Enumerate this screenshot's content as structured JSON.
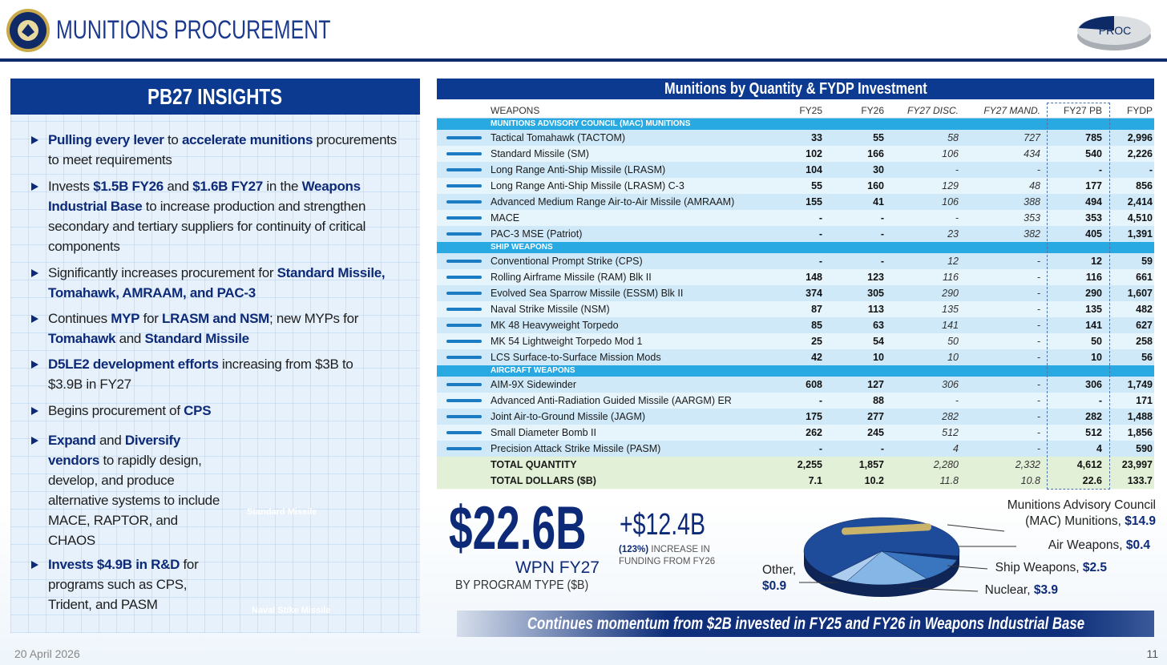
{
  "header": {
    "title": "MUNITIONS PROCUREMENT",
    "badge": "PROC"
  },
  "insights": {
    "title": "PB27 INSIGHTS",
    "bullets": [
      [
        {
          "text": "Pulling every lever",
          "bold": true
        },
        {
          "text": " to "
        },
        {
          "text": "accelerate munitions",
          "bold": true
        },
        {
          "text": " procurements to meet requirements"
        }
      ],
      [
        {
          "text": "Invests "
        },
        {
          "text": "$1.5B FY26",
          "bold": true
        },
        {
          "text": " and "
        },
        {
          "text": "$1.6B FY27",
          "bold": true
        },
        {
          "text": " in the "
        },
        {
          "text": "Weapons Industrial Base",
          "bold": true
        },
        {
          "text": " to increase production and strengthen secondary and tertiary suppliers for continuity of critical components"
        }
      ],
      [
        {
          "text": "Significantly increases procurement for "
        },
        {
          "text": "Standard Missile, Tomahawk, AMRAAM, and PAC-3",
          "bold": true
        }
      ],
      [
        {
          "text": "Continues "
        },
        {
          "text": "MYP",
          "bold": true
        },
        {
          "text": " for "
        },
        {
          "text": "LRASM and NSM",
          "bold": true
        },
        {
          "text": "; new MYPs for "
        },
        {
          "text": "Tomahawk",
          "bold": true
        },
        {
          "text": " and "
        },
        {
          "text": "Standard Missile",
          "bold": true
        }
      ],
      [
        {
          "text": "D5LE2 development efforts",
          "bold": true
        },
        {
          "text": " increasing from $3B to $3.9B in FY27"
        }
      ],
      [
        {
          "text": "Begins procurement of "
        },
        {
          "text": "CPS",
          "bold": true
        }
      ],
      [
        {
          "text": "Expand",
          "bold": true
        },
        {
          "text": " and "
        },
        {
          "text": "Diversify vendors",
          "bold": true
        },
        {
          "text": " to rapidly design, develop, and produce alternative systems to include MACE, RAPTOR, and CHAOS"
        }
      ],
      [
        {
          "text": "Invests $4.9B in R&D",
          "bold": true
        },
        {
          "text": " for programs such as CPS, Trident, and PASM"
        }
      ]
    ]
  },
  "images": [
    {
      "caption": "Standard Missile"
    },
    {
      "caption": "Naval Stike Missile"
    }
  ],
  "table": {
    "title": "Munitions by Quantity & FYDP Investment",
    "columns": [
      "WEAPONS",
      "FY25",
      "FY26",
      "FY27 DISC.",
      "FY27 MAND.",
      "FY27 PB",
      "FYDP"
    ],
    "sections": [
      {
        "title": "MUNITIONS ADVISORY COUNCIL (MAC) MUNITIONS",
        "rows": [
          {
            "name": "Tactical Tomahawk (TACTOM)",
            "cells": [
              "33",
              "55",
              "58",
              "727",
              "785",
              "2,996"
            ]
          },
          {
            "name": "Standard Missile (SM)",
            "cells": [
              "102",
              "166",
              "106",
              "434",
              "540",
              "2,226"
            ]
          },
          {
            "name": "Long Range Anti-Ship Missile (LRASM)",
            "cells": [
              "104",
              "30",
              "-",
              "-",
              "-",
              "-"
            ]
          },
          {
            "name": "Long Range Anti-Ship Missile (LRASM) C-3",
            "cells": [
              "55",
              "160",
              "129",
              "48",
              "177",
              "856"
            ]
          },
          {
            "name": "Advanced Medium Range Air-to-Air Missile (AMRAAM)",
            "cells": [
              "155",
              "41",
              "106",
              "388",
              "494",
              "2,414"
            ]
          },
          {
            "name": "MACE",
            "cells": [
              "-",
              "-",
              "-",
              "353",
              "353",
              "4,510"
            ]
          },
          {
            "name": "PAC-3 MSE (Patriot)",
            "cells": [
              "-",
              "-",
              "23",
              "382",
              "405",
              "1,391"
            ]
          }
        ]
      },
      {
        "title": "SHIP WEAPONS",
        "rows": [
          {
            "name": "Conventional Prompt Strike (CPS)",
            "cells": [
              "-",
              "-",
              "12",
              "-",
              "12",
              "59"
            ]
          },
          {
            "name": "Rolling Airframe Missile (RAM) Blk II",
            "cells": [
              "148",
              "123",
              "116",
              "-",
              "116",
              "661"
            ]
          },
          {
            "name": "Evolved Sea Sparrow Missile (ESSM) Blk II",
            "cells": [
              "374",
              "305",
              "290",
              "-",
              "290",
              "1,607"
            ]
          },
          {
            "name": "Naval Strike Missile (NSM)",
            "cells": [
              "87",
              "113",
              "135",
              "-",
              "135",
              "482"
            ]
          },
          {
            "name": "MK 48 Heavyweight Torpedo",
            "cells": [
              "85",
              "63",
              "141",
              "-",
              "141",
              "627"
            ]
          },
          {
            "name": "MK 54 Lightweight Torpedo Mod 1",
            "cells": [
              "25",
              "54",
              "50",
              "-",
              "50",
              "258"
            ]
          },
          {
            "name": "LCS Surface-to-Surface Mission Mods",
            "cells": [
              "42",
              "10",
              "10",
              "-",
              "10",
              "56"
            ]
          }
        ]
      },
      {
        "title": "AIRCRAFT WEAPONS",
        "rows": [
          {
            "name": "AIM-9X Sidewinder",
            "cells": [
              "608",
              "127",
              "306",
              "-",
              "306",
              "1,749"
            ]
          },
          {
            "name": "Advanced Anti-Radiation Guided Missile (AARGM) ER",
            "cells": [
              "-",
              "88",
              "-",
              "-",
              "-",
              "171"
            ]
          },
          {
            "name": "Joint Air-to-Ground Missile (JAGM)",
            "cells": [
              "175",
              "277",
              "282",
              "-",
              "282",
              "1,488"
            ]
          },
          {
            "name": "Small Diameter Bomb II",
            "cells": [
              "262",
              "245",
              "512",
              "-",
              "512",
              "1,856"
            ]
          },
          {
            "name": "Precision Attack Strike Missile (PASM)",
            "cells": [
              "-",
              "-",
              "4",
              "-",
              "4",
              "590"
            ]
          }
        ]
      }
    ],
    "totals": [
      {
        "name": "TOTAL QUANTITY",
        "cells": [
          "2,255",
          "1,857",
          "2,280",
          "2,332",
          "4,612",
          "23,997"
        ]
      },
      {
        "name": "TOTAL DOLLARS ($B)",
        "cells": [
          "7.1",
          "10.2",
          "11.8",
          "10.8",
          "22.6",
          "133.7"
        ]
      }
    ]
  },
  "summary": {
    "total": "$22.6B",
    "total_label": "WPN FY27",
    "increase": "+$12.4B",
    "increase_pct": "(123%)",
    "increase_text": "INCREASE IN FUNDING FROM FY26"
  },
  "chart_data": {
    "type": "pie",
    "title": "BY PROGRAM TYPE ($B)",
    "categories": [
      "Munitions Advisory Council (MAC) Munitions,",
      "Air Weapons,",
      "Ship Weapons,",
      "Nuclear,",
      "Other,"
    ],
    "values": [
      14.9,
      0.4,
      2.5,
      3.9,
      0.9
    ],
    "value_labels": [
      "$14.9",
      "$0.4",
      "$2.5",
      "$3.9",
      "$0.9"
    ],
    "colors": [
      "#1f4c9a",
      "#0e2a66",
      "#3a76c0",
      "#86b6e6",
      "#aecdee"
    ]
  },
  "banner": "Continues momentum from $2B invested in FY25 and FY26 in Weapons Industrial Base",
  "footer": {
    "date": "20 April 2026",
    "page": "11"
  }
}
